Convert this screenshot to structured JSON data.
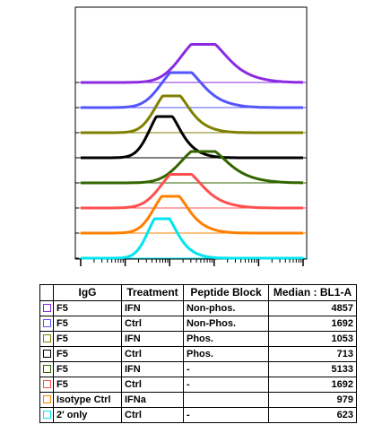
{
  "chart_data": {
    "type": "line",
    "subtype": "offset-histogram-overlay",
    "x_scale": "log",
    "xlim": [
      10,
      1000000
    ],
    "x_decades": 5,
    "y_axis_ticks": 8,
    "grid": false,
    "legend_placement": "table below plot",
    "series": [
      {
        "name": "F5 IFN Non-phos.",
        "color": "#8a2be2",
        "median": 4857,
        "peak_x": 5000,
        "width_decades": 0.45,
        "peak_height": 0.85
      },
      {
        "name": "F5 Ctrl Non-Phos.",
        "color": "#5555ff",
        "median": 1692,
        "peak_x": 1600,
        "width_decades": 0.4,
        "peak_height": 0.78
      },
      {
        "name": "F5 IFN Phos.",
        "color": "#808000",
        "median": 1053,
        "peak_x": 1000,
        "width_decades": 0.33,
        "peak_height": 0.82
      },
      {
        "name": "F5 Ctrl Phos.",
        "color": "#000000",
        "median": 713,
        "peak_x": 700,
        "width_decades": 0.3,
        "peak_height": 0.92
      },
      {
        "name": "F5 IFN -",
        "color": "#336600",
        "median": 5133,
        "peak_x": 5000,
        "width_decades": 0.45,
        "peak_height": 0.7
      },
      {
        "name": "F5 Ctrl -",
        "color": "#ff5050",
        "median": 1692,
        "peak_x": 1600,
        "width_decades": 0.4,
        "peak_height": 0.75
      },
      {
        "name": "Isotype Ctrl IFNa",
        "color": "#ff8000",
        "median": 979,
        "peak_x": 950,
        "width_decades": 0.33,
        "peak_height": 0.82
      },
      {
        "name": "2' only Ctrl -",
        "color": "#00e5ee",
        "median": 623,
        "peak_x": 620,
        "width_decades": 0.28,
        "peak_height": 0.88
      }
    ]
  },
  "table": {
    "headers": [
      "IgG",
      "Treatment",
      "Peptide Block",
      "Median : BL1-A"
    ],
    "rows": [
      {
        "color": "#8a2be2",
        "igg": "F5",
        "treatment": "IFN",
        "peptide": "Non-phos.",
        "median": "4857"
      },
      {
        "color": "#5555ff",
        "igg": "F5",
        "treatment": "Ctrl",
        "peptide": "Non-Phos.",
        "median": "1692"
      },
      {
        "color": "#808000",
        "igg": "F5",
        "treatment": "IFN",
        "peptide": "Phos.",
        "median": "1053"
      },
      {
        "color": "#000000",
        "igg": "F5",
        "treatment": "Ctrl",
        "peptide": "Phos.",
        "median": "713"
      },
      {
        "color": "#336600",
        "igg": "F5",
        "treatment": "IFN",
        "peptide": "-",
        "median": "5133"
      },
      {
        "color": "#ff5050",
        "igg": "F5",
        "treatment": "Ctrl",
        "peptide": "-",
        "median": "1692"
      },
      {
        "color": "#ff8000",
        "igg": "Isotype Ctrl",
        "treatment": "IFNa",
        "peptide": "",
        "median": "979"
      },
      {
        "color": "#00e5ee",
        "igg": "2' only",
        "treatment": "Ctrl",
        "peptide": "-",
        "median": "623"
      }
    ]
  }
}
